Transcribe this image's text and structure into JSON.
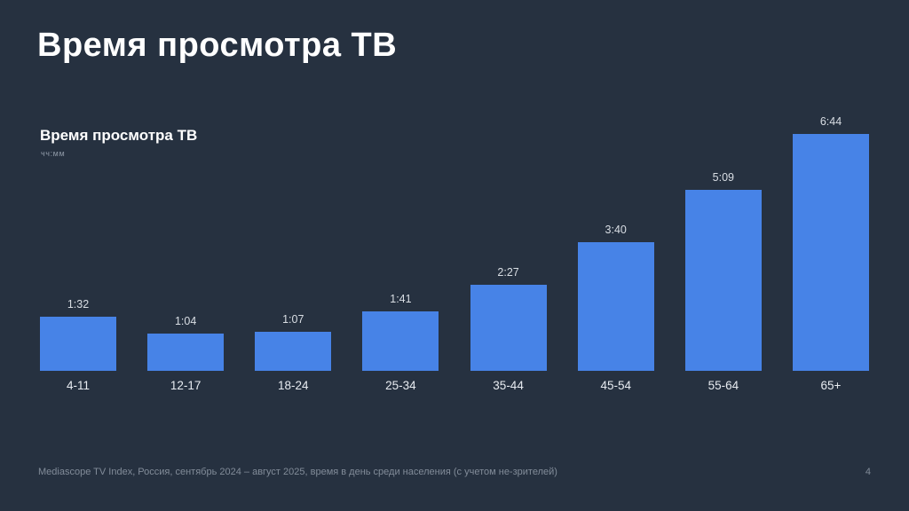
{
  "slide": {
    "title": "Время просмотра ТВ"
  },
  "chart": {
    "title": "Время просмотра ТВ",
    "units": "чч:мм"
  },
  "chart_data": {
    "type": "bar",
    "title": "Время просмотра ТВ",
    "unit_label": "чч:мм",
    "categories": [
      "4-11",
      "12-17",
      "18-24",
      "25-34",
      "35-44",
      "45-54",
      "55-64",
      "65+"
    ],
    "value_labels": [
      "1:32",
      "1:04",
      "1:07",
      "1:41",
      "2:27",
      "3:40",
      "5:09",
      "6:44"
    ],
    "values_minutes": [
      92,
      64,
      67,
      101,
      147,
      220,
      309,
      404
    ],
    "xlabel": "",
    "ylabel": "чч:мм",
    "ylim_minutes": [
      0,
      404
    ],
    "grid": false,
    "legend": false,
    "bar_color": "#4783e7"
  },
  "footer": {
    "source": "Mediascope TV Index, Россия, сентябрь 2024 – август 2025, время в день среди населения (с учетом не-зрителей)",
    "page_number": "4"
  },
  "colors": {
    "background": "#263140",
    "bar": "#4783e7",
    "title_text": "#ffffff",
    "value_label": "#d9dee4",
    "category_label": "#e8ecf1",
    "muted_text": "#828c99"
  }
}
